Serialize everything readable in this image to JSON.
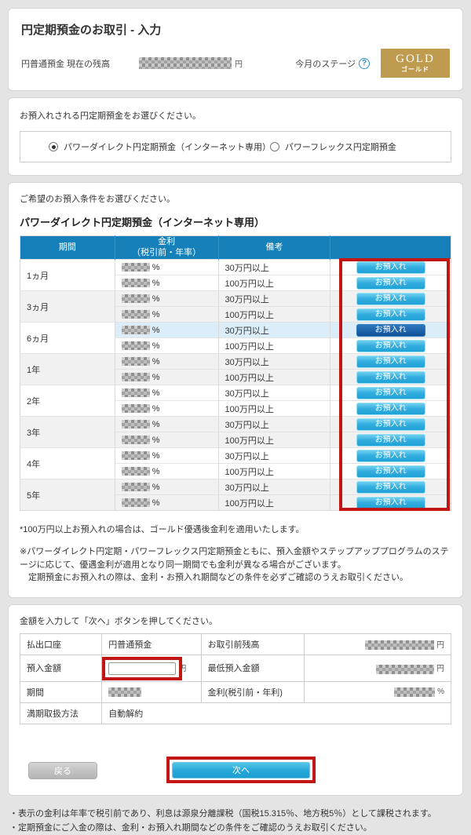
{
  "header": {
    "title": "円定期預金のお取引 - 入力",
    "balance_label": "円普通預金 現在の残高",
    "balance_value_masked": true,
    "currency_unit": "円",
    "stage_label": "今月のステージ",
    "stage_help_icon": "question-circle-icon",
    "stage_badge_main": "GOLD",
    "stage_badge_sub": "ゴールド",
    "stage_badge_color": "#bf9b50"
  },
  "product_select": {
    "instruction": "お預入れされる円定期預金をお選びください。",
    "options": [
      {
        "label": "パワーダイレクト円定期預金（インターネット専用）",
        "selected": true
      },
      {
        "label": "パワーフレックス円定期預金",
        "selected": false
      }
    ]
  },
  "conditions": {
    "instruction": "ご希望のお預入条件をお選びください。",
    "table_title": "パワーダイレクト円定期預金（インターネット専用）",
    "columns": {
      "period": "期間",
      "rate_line1": "金利",
      "rate_line2": "（税引前・年率）",
      "remark": "備考",
      "action": ""
    },
    "rate_unit": "%",
    "rate_values_masked": true,
    "deposit_button_label": "お預入れ",
    "periods": [
      {
        "period": "1ヵ月",
        "rows": [
          {
            "remark": "30万円以上"
          },
          {
            "remark": "100万円以上"
          }
        ]
      },
      {
        "period": "3ヵ月",
        "rows": [
          {
            "remark": "30万円以上"
          },
          {
            "remark": "100万円以上"
          }
        ]
      },
      {
        "period": "6ヵ月",
        "rows": [
          {
            "remark": "30万円以上",
            "highlighted": true,
            "selected": true
          },
          {
            "remark": "100万円以上"
          }
        ]
      },
      {
        "period": "1年",
        "rows": [
          {
            "remark": "30万円以上"
          },
          {
            "remark": "100万円以上"
          }
        ]
      },
      {
        "period": "2年",
        "rows": [
          {
            "remark": "30万円以上"
          },
          {
            "remark": "100万円以上"
          }
        ]
      },
      {
        "period": "3年",
        "rows": [
          {
            "remark": "30万円以上"
          },
          {
            "remark": "100万円以上"
          }
        ]
      },
      {
        "period": "4年",
        "rows": [
          {
            "remark": "30万円以上"
          },
          {
            "remark": "100万円以上"
          }
        ]
      },
      {
        "period": "5年",
        "rows": [
          {
            "remark": "30万円以上"
          },
          {
            "remark": "100万円以上"
          }
        ]
      }
    ],
    "note1": "*100万円以上お預入れの場合は、ゴールド優遇後金利を適用いたします。",
    "note2": "※パワーダイレクト円定期・パワーフレックス円定期預金ともに、預入金額やステップアッププログラムのステージに応じて、優遇金利が適用となり同一期間でも金利が異なる場合がございます。",
    "note3": "定期預金にお預入れの際は、金利・お預入れ期間などの条件を必ずご確認のうえお取引ください。"
  },
  "entry": {
    "instruction": "金額を入力して「次へ」ボタンを押してください。",
    "payout_account_label": "払出口座",
    "payout_account_value": "円普通預金",
    "pre_balance_label": "お取引前残高",
    "pre_balance_masked": true,
    "deposit_amount_label": "預入金額",
    "amount_input_value": "",
    "min_deposit_label": "最低預入金額",
    "min_deposit_masked": true,
    "period_label": "期間",
    "period_value_masked": true,
    "rate_label": "金利(税引前・年利)",
    "rate_value_masked": true,
    "rate_unit": "%",
    "maturity_label": "満期取扱方法",
    "maturity_value": "自動解約",
    "currency_unit": "円",
    "back_label": "戻る",
    "next_label": "次へ"
  },
  "footer_notes": [
    "・表示の金利は年率で税引前であり、利息は源泉分離課税（国税15.315％、地方税5％）として課税されます。",
    "・定期預金にご入金の際は、金利・お預入れ期間などの条件をご確認のうえお取引ください。"
  ],
  "annotation_color": "#c41515"
}
